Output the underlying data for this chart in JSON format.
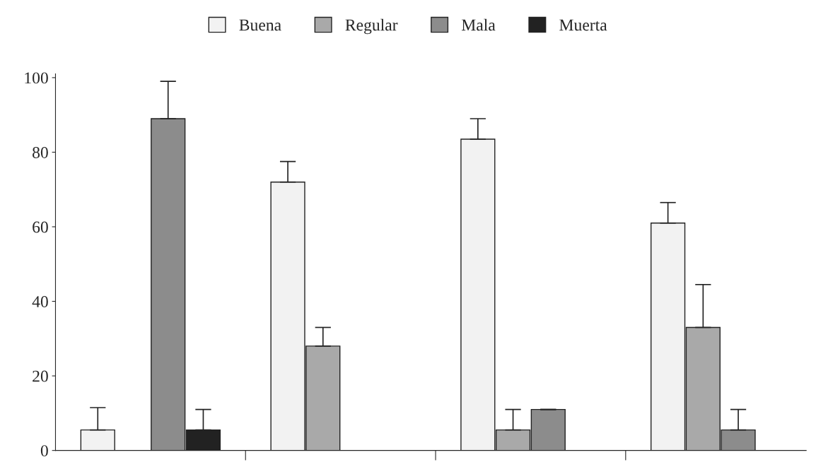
{
  "chart_data": {
    "type": "bar",
    "categories": [
      null,
      null,
      null,
      null
    ],
    "series": [
      {
        "name": "Buena",
        "color": "#f2f2f2",
        "values": [
          5.5,
          72,
          83.5,
          61
        ],
        "errors": [
          [
            5.5,
            11.5
          ],
          [
            72,
            77.5
          ],
          [
            83.5,
            89
          ],
          [
            61,
            66.5
          ]
        ]
      },
      {
        "name": "Regular",
        "color": "#a9a9a9",
        "values": [
          null,
          28,
          5.5,
          33
        ],
        "errors": [
          null,
          [
            28,
            33
          ],
          [
            5.5,
            11
          ],
          [
            33,
            44.5
          ]
        ]
      },
      {
        "name": "Mala",
        "color": "#8c8c8c",
        "values": [
          89,
          null,
          11,
          5.5
        ],
        "errors": [
          [
            89,
            99
          ],
          null,
          [
            11,
            11
          ],
          [
            5.5,
            11
          ]
        ]
      },
      {
        "name": "Muerta",
        "color": "#222222",
        "values": [
          5.5,
          null,
          null,
          null
        ],
        "errors": [
          [
            5.5,
            11
          ],
          null,
          null,
          null
        ]
      }
    ],
    "ylim": [
      0,
      101
    ],
    "yticks": [
      0,
      20,
      40,
      60,
      80,
      100
    ],
    "legend": "top",
    "grid": false
  }
}
